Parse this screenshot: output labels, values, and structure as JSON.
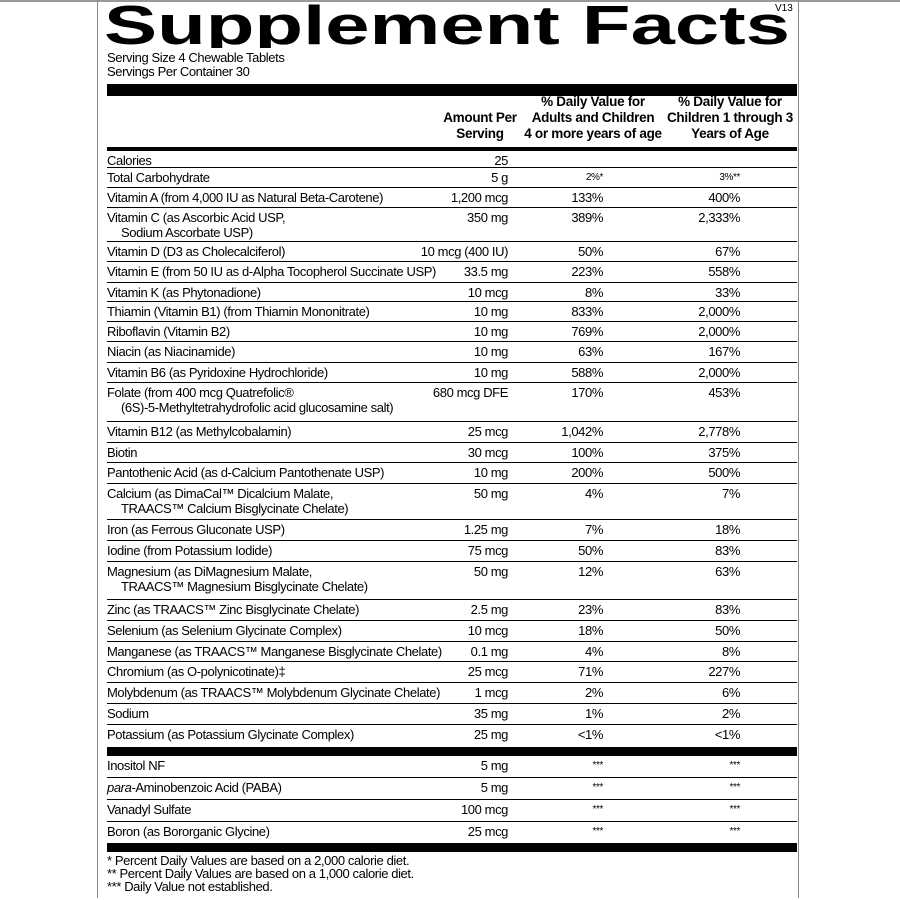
{
  "title": "Supplement Facts",
  "version": "V13",
  "serving_size": "Serving Size 4 Chewable Tablets",
  "servings_per_container": "Servings Per Container 30",
  "headers": {
    "amount": [
      "Amount Per",
      "Serving"
    ],
    "adult": [
      "% Daily Value for",
      "Adults and Children",
      "4 or more years of age"
    ],
    "child": [
      "% Daily Value for",
      "Children 1 through 3",
      "Years of Age"
    ]
  },
  "rows": [
    {
      "name": [
        "Calories"
      ],
      "amount": "25",
      "adult": "",
      "child": "",
      "noline": false
    },
    {
      "name": [
        "Total Carbohydrate"
      ],
      "amount": "5 g",
      "adult": "2%*",
      "child": "3%**"
    },
    {
      "name": [
        "Vitamin A (from 4,000 IU as Natural Beta-Carotene)"
      ],
      "amount": "1,200 mcg",
      "adult": "133%",
      "child": "400%"
    },
    {
      "name": [
        "Vitamin C (as Ascorbic Acid USP,",
        "Sodium Ascorbate USP)"
      ],
      "amount": "350 mg",
      "adult": "389%",
      "child": "2,333%"
    },
    {
      "name": [
        "Vitamin D (D3 as Cholecalciferol)"
      ],
      "amount": "10 mcg (400 IU)",
      "adult": "50%",
      "child": "67%"
    },
    {
      "name": [
        "Vitamin E (from 50 IU as d-Alpha Tocopherol Succinate USP)"
      ],
      "amount": "33.5 mg",
      "adult": "223%",
      "child": "558%"
    },
    {
      "name": [
        "Vitamin K (as Phytonadione)"
      ],
      "amount": "10 mcg",
      "adult": "8%",
      "child": "33%"
    },
    {
      "name": [
        "Thiamin (Vitamin B1) (from Thiamin Mononitrate)"
      ],
      "amount": "10 mg",
      "adult": "833%",
      "child": "2,000%"
    },
    {
      "name": [
        "Riboflavin (Vitamin B2)"
      ],
      "amount": "10 mg",
      "adult": "769%",
      "child": "2,000%"
    },
    {
      "name": [
        "Niacin (as Niacinamide)"
      ],
      "amount": "10 mg",
      "adult": "63%",
      "child": "167%"
    },
    {
      "name": [
        "Vitamin B6 (as Pyridoxine Hydrochloride)"
      ],
      "amount": "10 mg",
      "adult": "588%",
      "child": "2,000%"
    },
    {
      "name": [
        "Folate (from 400 mcg Quatrefolic®",
        "(6S)-5-Methyltetrahydrofolic acid glucosamine salt)"
      ],
      "amount": "680 mcg DFE",
      "adult": "170%",
      "child": "453%"
    },
    {
      "name": [
        "Vitamin B12 (as Methylcobalamin)"
      ],
      "amount": "25 mcg",
      "adult": "1,042%",
      "child": "2,778%"
    },
    {
      "name": [
        "Biotin"
      ],
      "amount": "30 mcg",
      "adult": "100%",
      "child": "375%"
    },
    {
      "name": [
        "Pantothenic Acid (as d-Calcium Pantothenate USP)"
      ],
      "amount": "10 mg",
      "adult": "200%",
      "child": "500%"
    },
    {
      "name": [
        "Calcium (as DimaCal™ Dicalcium Malate,",
        "TRAACS™ Calcium Bisglycinate Chelate)"
      ],
      "amount": "50 mg",
      "adult": "4%",
      "child": "7%"
    },
    {
      "name": [
        "Iron (as Ferrous Gluconate USP)"
      ],
      "amount": "1.25 mg",
      "adult": "7%",
      "child": "18%"
    },
    {
      "name": [
        "Iodine (from Potassium Iodide)"
      ],
      "amount": "75 mcg",
      "adult": "50%",
      "child": "83%"
    },
    {
      "name": [
        "Magnesium (as DiMagnesium Malate,",
        "TRAACS™ Magnesium Bisglycinate Chelate)"
      ],
      "amount": "50 mg",
      "adult": "12%",
      "child": "63%"
    },
    {
      "name": [
        "Zinc (as TRAACS™ Zinc Bisglycinate Chelate)"
      ],
      "amount": "2.5 mg",
      "adult": "23%",
      "child": "83%"
    },
    {
      "name": [
        "Selenium (as Selenium Glycinate Complex)"
      ],
      "amount": "10 mcg",
      "adult": "18%",
      "child": "50%"
    },
    {
      "name": [
        "Manganese (as TRAACS™ Manganese Bisglycinate Chelate)"
      ],
      "amount": "0.1 mg",
      "adult": "4%",
      "child": "8%"
    },
    {
      "name": [
        "Chromium (as O-polynicotinate)‡"
      ],
      "amount": "25 mcg",
      "adult": "71%",
      "child": "227%"
    },
    {
      "name": [
        "Molybdenum (as TRAACS™ Molybdenum Glycinate Chelate)"
      ],
      "amount": "1 mcg",
      "adult": "2%",
      "child": "6%"
    },
    {
      "name": [
        "Sodium"
      ],
      "amount": "35 mg",
      "adult": "1%",
      "child": "2%"
    },
    {
      "name": [
        "Potassium (as Potassium Glycinate Complex)"
      ],
      "amount": "25 mg",
      "adult": "<1%",
      "child": "<1%"
    }
  ],
  "other_rows": [
    {
      "name": [
        "Inositol NF"
      ],
      "amount": "5 mg",
      "adult": "***",
      "child": "***"
    },
    {
      "prefix": "para-",
      "name": [
        "Aminobenzoic Acid (PABA)"
      ],
      "amount": "5 mg",
      "adult": "***",
      "child": "***"
    },
    {
      "name": [
        "Vanadyl Sulfate"
      ],
      "amount": "100 mcg",
      "adult": "***",
      "child": "***"
    },
    {
      "name": [
        "Boron (as Bororganic Glycine)"
      ],
      "amount": "25 mcg",
      "adult": "***",
      "child": "***"
    }
  ],
  "footnotes": [
    "* Percent Daily Values are based on a 2,000 calorie diet.",
    "** Percent Daily Values are based on a 1,000 calorie diet.",
    "*** Daily Value not established."
  ]
}
